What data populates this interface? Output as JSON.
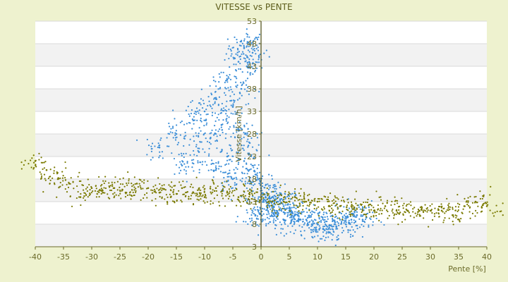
{
  "chart_data": {
    "type": "scatter",
    "title": "VITESSE vs PENTE",
    "xlabel": "Pente [%]",
    "ylabel": "Vitesse [km/h]",
    "xlim": [
      -40,
      40
    ],
    "ylim": [
      3,
      53
    ],
    "x_ticks": [
      "-40",
      "-35",
      "-30",
      "-25",
      "-20",
      "-15",
      "-10",
      "-5",
      "0",
      "5",
      "10",
      "15",
      "20",
      "25",
      "30",
      "35",
      "40"
    ],
    "y_ticks": [
      "3",
      "8",
      "13",
      "18",
      "23",
      "28",
      "33",
      "38",
      "43",
      "48",
      "53"
    ],
    "grid": true,
    "series": [
      {
        "color": "#3d8fd8",
        "marker": "dot",
        "description_points": [
          [
            -2,
            48
          ],
          [
            -3,
            47
          ],
          [
            -1.5,
            46
          ],
          [
            -4,
            44
          ],
          [
            -2.5,
            43
          ],
          [
            -6,
            40
          ],
          [
            -3.5,
            38
          ],
          [
            -8,
            36
          ],
          [
            -5,
            34
          ],
          [
            -10,
            33
          ],
          [
            -12,
            31
          ],
          [
            -7,
            30
          ],
          [
            -4,
            29
          ],
          [
            -15,
            28
          ],
          [
            -9,
            27
          ],
          [
            -2,
            26
          ],
          [
            -18,
            25
          ],
          [
            -11,
            24
          ],
          [
            -6,
            23
          ],
          [
            -3,
            22
          ],
          [
            -14,
            21
          ],
          [
            -8,
            20
          ],
          [
            -1,
            19
          ],
          [
            -5,
            18
          ],
          [
            -2,
            17
          ],
          [
            0,
            16
          ],
          [
            1,
            15
          ],
          [
            2,
            14
          ],
          [
            3,
            13
          ],
          [
            4,
            12
          ],
          [
            5,
            11
          ],
          [
            6,
            10
          ],
          [
            7,
            9
          ],
          [
            8,
            9
          ],
          [
            9,
            8
          ],
          [
            10,
            8
          ],
          [
            11,
            7
          ],
          [
            12,
            7
          ],
          [
            13,
            8
          ],
          [
            14,
            9
          ],
          [
            15,
            8
          ],
          [
            16,
            9
          ],
          [
            17,
            10
          ],
          [
            18,
            9
          ],
          [
            3,
            10
          ],
          [
            2,
            11
          ],
          [
            1,
            12
          ],
          [
            0,
            9
          ],
          [
            -1,
            10
          ],
          [
            4,
            9
          ]
        ]
      },
      {
        "color": "#7a7a00",
        "marker": "dot",
        "description_points": [
          [
            -40,
            22
          ],
          [
            -38,
            20
          ],
          [
            -36,
            18
          ],
          [
            -34,
            17
          ],
          [
            -32,
            14
          ],
          [
            -30,
            16
          ],
          [
            -28,
            15
          ],
          [
            -26,
            16
          ],
          [
            -24,
            15
          ],
          [
            -22,
            17
          ],
          [
            -20,
            16
          ],
          [
            -18,
            15
          ],
          [
            -16,
            14
          ],
          [
            -14,
            16
          ],
          [
            -12,
            15
          ],
          [
            -10,
            14
          ],
          [
            -8,
            16
          ],
          [
            -6,
            15
          ],
          [
            -4,
            14
          ],
          [
            -2,
            15
          ],
          [
            0,
            14
          ],
          [
            2,
            13
          ],
          [
            4,
            13
          ],
          [
            6,
            14
          ],
          [
            8,
            13
          ],
          [
            10,
            13
          ],
          [
            12,
            12
          ],
          [
            14,
            12
          ],
          [
            16,
            12
          ],
          [
            18,
            11
          ],
          [
            20,
            11
          ],
          [
            22,
            12
          ],
          [
            24,
            11
          ],
          [
            26,
            11
          ],
          [
            28,
            11
          ],
          [
            30,
            11
          ],
          [
            32,
            11
          ],
          [
            34,
            10
          ],
          [
            36,
            12
          ],
          [
            38,
            13
          ],
          [
            40,
            12
          ]
        ]
      }
    ]
  }
}
